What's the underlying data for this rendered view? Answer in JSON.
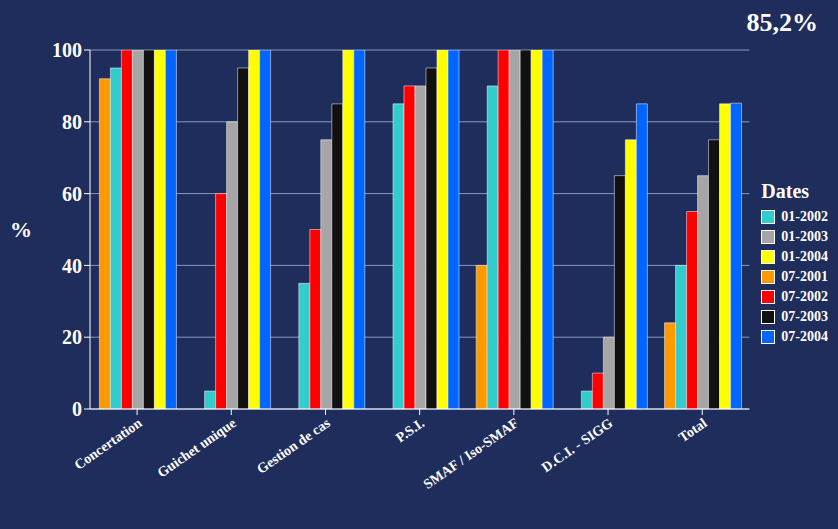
{
  "chart_data": {
    "type": "bar",
    "y_label": "%",
    "legend_title": "Dates",
    "annotations": [
      {
        "text": "85,2%"
      }
    ],
    "categories": [
      "Concertation",
      "Guichet unique",
      "Gestion de cas",
      "P.S.I.",
      "SMAF / Iso-SMAF",
      "D.C.I. - SIGG",
      "Total"
    ],
    "series": [
      {
        "name": "07-2001",
        "color": "#FF9900",
        "values": [
          92,
          0,
          0,
          0,
          40,
          0,
          24
        ]
      },
      {
        "name": "01-2002",
        "color": "#33CCCC",
        "values": [
          95,
          5,
          35,
          85,
          90,
          5,
          40
        ]
      },
      {
        "name": "07-2002",
        "color": "#FF0000",
        "values": [
          100,
          60,
          50,
          90,
          100,
          10,
          55
        ]
      },
      {
        "name": "01-2003",
        "color": "#A6A6A6",
        "values": [
          100,
          80,
          75,
          90,
          100,
          20,
          65
        ]
      },
      {
        "name": "07-2003",
        "color": "#111111",
        "values": [
          100,
          95,
          85,
          95,
          100,
          65,
          75
        ]
      },
      {
        "name": "01-2004",
        "color": "#FFFF00",
        "values": [
          100,
          100,
          100,
          100,
          100,
          75,
          85
        ]
      },
      {
        "name": "07-2004",
        "color": "#0066FF",
        "values": [
          100,
          100,
          100,
          100,
          100,
          85,
          85.2
        ]
      }
    ],
    "ylim": [
      0,
      100
    ],
    "yticks": [
      0,
      20,
      40,
      60,
      80,
      100
    ],
    "grid": true,
    "legend": "right"
  }
}
